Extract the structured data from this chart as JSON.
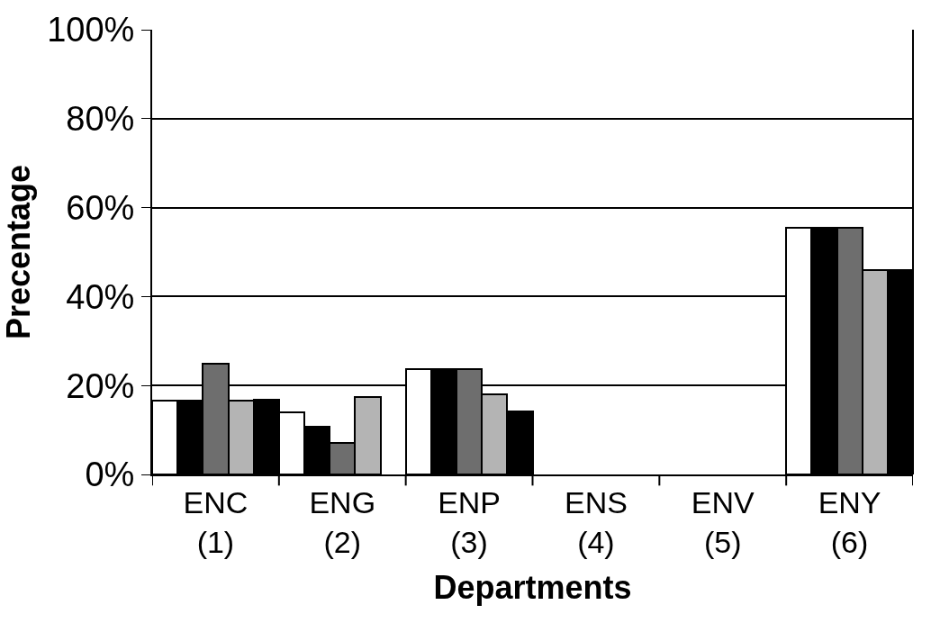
{
  "chart_data": {
    "type": "bar",
    "xlabel": "Departments",
    "ylabel": "Precentage",
    "categories": [
      "ENC\n(1)",
      "ENG\n(2)",
      "ENP\n(3)",
      "ENS\n(4)",
      "ENV\n(5)",
      "ENY\n(6)"
    ],
    "series": [
      {
        "color": "#ffffff",
        "values": [
          16.7,
          13.9,
          23.6,
          null,
          null,
          55.5
        ]
      },
      {
        "color": "#000000",
        "values": [
          16.7,
          10.8,
          23.6,
          null,
          null,
          55.5
        ]
      },
      {
        "color": "#6e6e6e",
        "values": [
          25,
          7,
          23.6,
          null,
          null,
          55.5
        ]
      },
      {
        "color": "#b4b4b4",
        "values": [
          16.7,
          17.4,
          18,
          null,
          null,
          46
        ]
      },
      {
        "color": "#000000",
        "values": [
          16.9,
          null,
          14.2,
          null,
          null,
          46
        ]
      }
    ],
    "ylim": [
      0,
      100
    ],
    "yticks": [
      {
        "value": 0,
        "label": "0%"
      },
      {
        "value": 20,
        "label": "20%"
      },
      {
        "value": 40,
        "label": "40%"
      },
      {
        "value": 60,
        "label": "60%"
      },
      {
        "value": 80,
        "label": "80%"
      },
      {
        "value": 100,
        "label": "100%"
      }
    ],
    "grid": "y"
  }
}
